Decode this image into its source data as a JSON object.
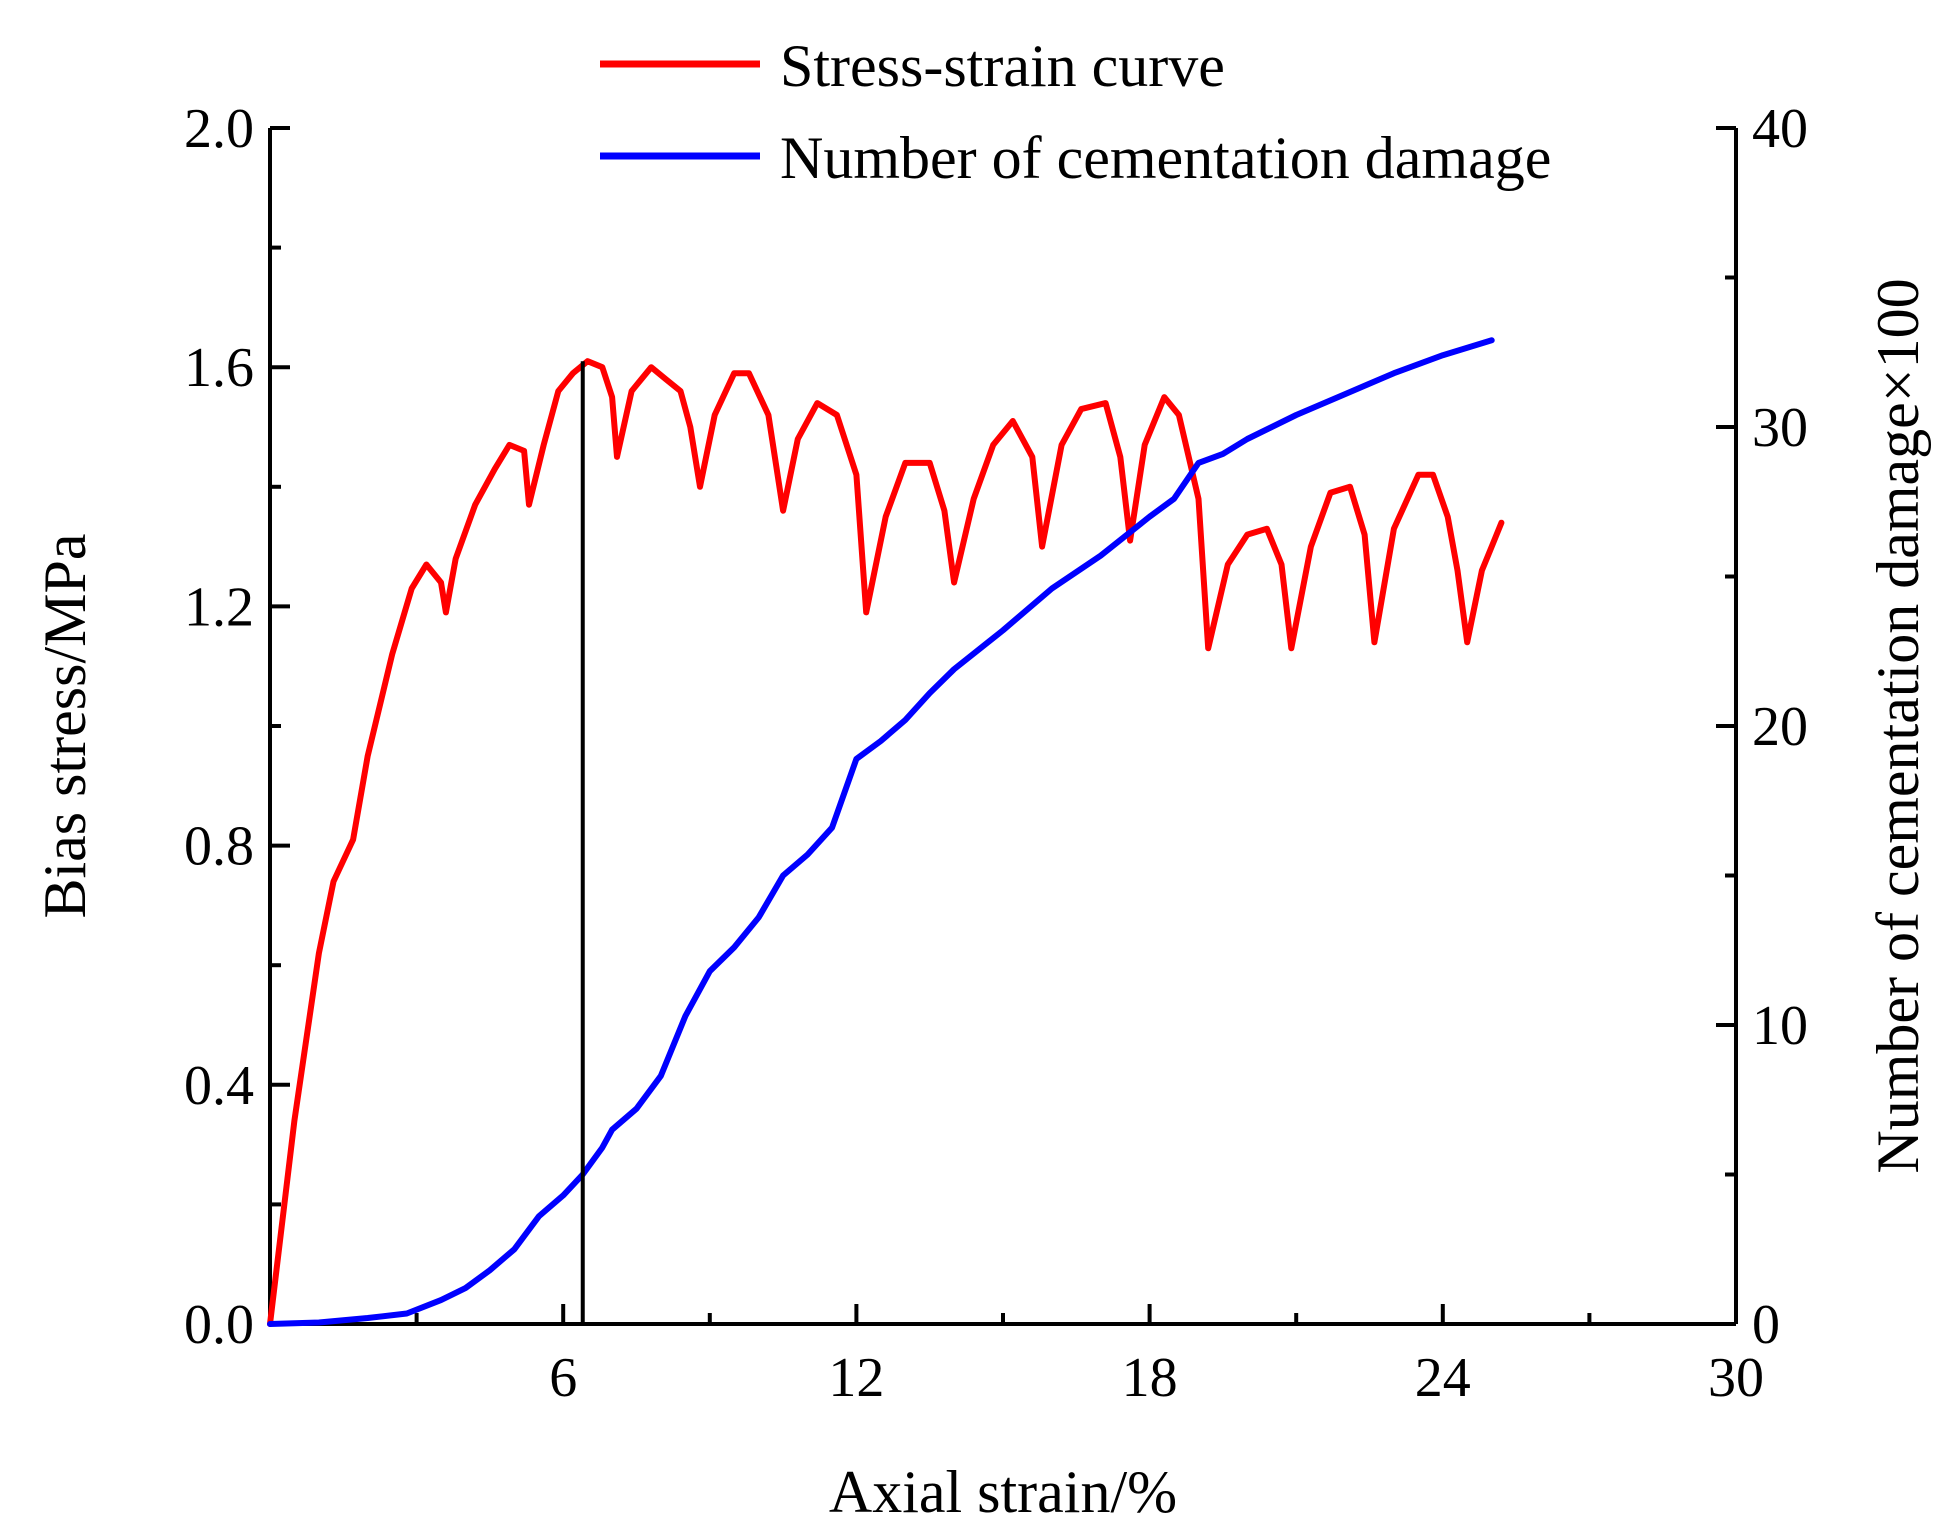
{
  "chart_data": {
    "type": "line",
    "x_axis": {
      "label": "Axial strain/%",
      "range": [
        0,
        30
      ],
      "ticks": [
        6,
        12,
        18,
        24,
        30
      ],
      "tick_labels": [
        "6",
        "12",
        "18",
        "24",
        "30"
      ]
    },
    "y_axis_left": {
      "label": "Bias stress/MPa",
      "range": [
        0,
        2.0
      ],
      "ticks": [
        0,
        0.4,
        0.8,
        1.2,
        1.6,
        2.0
      ],
      "tick_labels": [
        "0.0",
        "0.4",
        "0.8",
        "1.2",
        "1.6",
        "2.0"
      ]
    },
    "y_axis_right": {
      "label": "Number of cementation damage×100",
      "range": [
        0,
        40
      ],
      "ticks": [
        0,
        10,
        20,
        30,
        40
      ],
      "tick_labels": [
        "0",
        "10",
        "20",
        "30",
        "40"
      ]
    },
    "legend": [
      {
        "name": "Stress-strain curve",
        "color": "#ff0000"
      },
      {
        "name": "Number of cementation damage",
        "color": "#0000ff"
      }
    ],
    "legend_position": "top-center",
    "grid": false,
    "series": [
      {
        "name": "Stress-strain curve",
        "axis": "left",
        "color": "#ff0000",
        "points": [
          [
            0,
            0
          ],
          [
            0.5,
            0.34
          ],
          [
            1.0,
            0.62
          ],
          [
            1.3,
            0.74
          ],
          [
            1.7,
            0.81
          ],
          [
            2.0,
            0.95
          ],
          [
            2.5,
            1.12
          ],
          [
            2.9,
            1.23
          ],
          [
            3.2,
            1.27
          ],
          [
            3.5,
            1.24
          ],
          [
            3.6,
            1.19
          ],
          [
            3.8,
            1.28
          ],
          [
            4.2,
            1.37
          ],
          [
            4.6,
            1.43
          ],
          [
            4.9,
            1.47
          ],
          [
            5.2,
            1.46
          ],
          [
            5.3,
            1.37
          ],
          [
            5.6,
            1.47
          ],
          [
            5.9,
            1.56
          ],
          [
            6.2,
            1.59
          ],
          [
            6.5,
            1.61
          ],
          [
            6.8,
            1.6
          ],
          [
            7.0,
            1.55
          ],
          [
            7.1,
            1.45
          ],
          [
            7.4,
            1.56
          ],
          [
            7.8,
            1.6
          ],
          [
            8.1,
            1.58
          ],
          [
            8.4,
            1.56
          ],
          [
            8.6,
            1.5
          ],
          [
            8.8,
            1.4
          ],
          [
            9.1,
            1.52
          ],
          [
            9.5,
            1.59
          ],
          [
            9.8,
            1.59
          ],
          [
            10.2,
            1.52
          ],
          [
            10.5,
            1.36
          ],
          [
            10.8,
            1.48
          ],
          [
            11.2,
            1.54
          ],
          [
            11.6,
            1.52
          ],
          [
            12.0,
            1.42
          ],
          [
            12.2,
            1.19
          ],
          [
            12.6,
            1.35
          ],
          [
            13.0,
            1.44
          ],
          [
            13.5,
            1.44
          ],
          [
            13.8,
            1.36
          ],
          [
            14.0,
            1.24
          ],
          [
            14.4,
            1.38
          ],
          [
            14.8,
            1.47
          ],
          [
            15.2,
            1.51
          ],
          [
            15.6,
            1.45
          ],
          [
            15.8,
            1.3
          ],
          [
            16.2,
            1.47
          ],
          [
            16.6,
            1.53
          ],
          [
            17.1,
            1.54
          ],
          [
            17.4,
            1.45
          ],
          [
            17.6,
            1.31
          ],
          [
            17.9,
            1.47
          ],
          [
            18.3,
            1.55
          ],
          [
            18.6,
            1.52
          ],
          [
            19.0,
            1.38
          ],
          [
            19.2,
            1.13
          ],
          [
            19.6,
            1.27
          ],
          [
            20.0,
            1.32
          ],
          [
            20.4,
            1.33
          ],
          [
            20.7,
            1.27
          ],
          [
            20.9,
            1.13
          ],
          [
            21.3,
            1.3
          ],
          [
            21.7,
            1.39
          ],
          [
            22.1,
            1.4
          ],
          [
            22.4,
            1.32
          ],
          [
            22.6,
            1.14
          ],
          [
            23.0,
            1.33
          ],
          [
            23.5,
            1.42
          ],
          [
            23.8,
            1.42
          ],
          [
            24.1,
            1.35
          ],
          [
            24.3,
            1.26
          ],
          [
            24.5,
            1.14
          ],
          [
            24.8,
            1.26
          ],
          [
            25.0,
            1.3
          ],
          [
            25.2,
            1.34
          ]
        ]
      },
      {
        "name": "Number of cementation damage",
        "axis": "right",
        "color": "#0000ff",
        "points": [
          [
            0,
            0
          ],
          [
            1.0,
            0.05
          ],
          [
            2.0,
            0.2
          ],
          [
            2.8,
            0.35
          ],
          [
            3.5,
            0.8
          ],
          [
            4.0,
            1.2
          ],
          [
            4.5,
            1.8
          ],
          [
            5.0,
            2.5
          ],
          [
            5.5,
            3.6
          ],
          [
            6.0,
            4.3
          ],
          [
            6.4,
            5.0
          ],
          [
            6.8,
            5.9
          ],
          [
            7.0,
            6.5
          ],
          [
            7.5,
            7.2
          ],
          [
            8.0,
            8.3
          ],
          [
            8.5,
            10.3
          ],
          [
            9.0,
            11.8
          ],
          [
            9.5,
            12.6
          ],
          [
            10.0,
            13.6
          ],
          [
            10.5,
            15.0
          ],
          [
            11.0,
            15.7
          ],
          [
            11.5,
            16.6
          ],
          [
            12.0,
            18.9
          ],
          [
            12.5,
            19.5
          ],
          [
            13.0,
            20.2
          ],
          [
            13.5,
            21.1
          ],
          [
            14.0,
            21.9
          ],
          [
            15.0,
            23.2
          ],
          [
            16.0,
            24.6
          ],
          [
            17.0,
            25.7
          ],
          [
            18.0,
            27.0
          ],
          [
            18.5,
            27.6
          ],
          [
            19.0,
            28.8
          ],
          [
            19.5,
            29.1
          ],
          [
            20.0,
            29.6
          ],
          [
            21.0,
            30.4
          ],
          [
            22.0,
            31.1
          ],
          [
            23.0,
            31.8
          ],
          [
            24.0,
            32.4
          ],
          [
            25.0,
            32.9
          ]
        ]
      }
    ],
    "annotations": [
      {
        "type": "vertical-line",
        "x": 6.4,
        "y_from": 0,
        "y_to": 1.61,
        "color": "#000000"
      }
    ]
  }
}
